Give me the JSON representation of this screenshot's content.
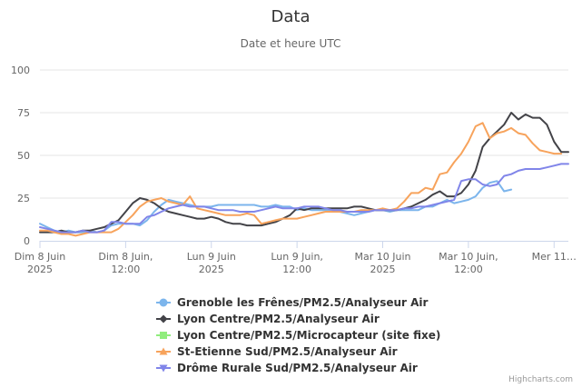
{
  "chart_data": {
    "type": "line",
    "title": "Data",
    "subtitle": "Date et heure UTC",
    "ylim": [
      0,
      100
    ],
    "y_ticks": [
      0,
      25,
      50,
      75,
      100
    ],
    "x_range_hours": [
      0,
      74
    ],
    "x_ticks": [
      {
        "hour": 0,
        "line1": "Dim 8 Juin",
        "line2": "2025"
      },
      {
        "hour": 12,
        "line1": "Dim 8 Juin,",
        "line2": "12:00"
      },
      {
        "hour": 24,
        "line1": "Lun 9 Juin",
        "line2": "2025"
      },
      {
        "hour": 36,
        "line1": "Lun 9 Juin,",
        "line2": "12:00"
      },
      {
        "hour": 48,
        "line1": "Mar 10 Juin",
        "line2": "2025"
      },
      {
        "hour": 60,
        "line1": "Mar 10 Juin,",
        "line2": "12:00"
      },
      {
        "hour": 72,
        "line1": "Mer 11…",
        "line2": ""
      }
    ],
    "series": [
      {
        "name": "Grenoble les Frênes/PM2.5/Analyseur Air",
        "color": "#7cb5ec",
        "marker": "circle",
        "x": [
          0,
          1,
          2,
          3,
          4,
          5,
          6,
          7,
          8,
          9,
          10,
          11,
          12,
          13,
          14,
          15,
          16,
          17,
          18,
          19,
          20,
          21,
          22,
          23,
          24,
          25,
          26,
          27,
          28,
          29,
          30,
          31,
          32,
          33,
          34,
          35,
          36,
          37,
          38,
          39,
          40,
          41,
          42,
          43,
          44,
          45,
          46,
          47,
          48,
          49,
          50,
          51,
          52,
          53,
          54,
          55,
          56,
          57,
          58,
          59,
          60,
          61,
          62,
          63,
          64,
          65,
          66
        ],
        "values": [
          10,
          8,
          6,
          5,
          6,
          5,
          5,
          6,
          5,
          6,
          9,
          10,
          10,
          10,
          9,
          12,
          17,
          21,
          24,
          23,
          22,
          21,
          20,
          20,
          20,
          21,
          21,
          21,
          21,
          21,
          21,
          20,
          20,
          21,
          20,
          20,
          18,
          19,
          18,
          18,
          18,
          17,
          17,
          16,
          15,
          16,
          17,
          18,
          18,
          17,
          18,
          18,
          18,
          18,
          20,
          20,
          22,
          24,
          22,
          23,
          24,
          26,
          31,
          34,
          35,
          29,
          30
        ]
      },
      {
        "name": "Lyon Centre/PM2.5/Analyseur Air",
        "color": "#434348",
        "marker": "diamond",
        "x": [
          0,
          1,
          2,
          3,
          4,
          5,
          6,
          7,
          8,
          9,
          10,
          11,
          12,
          13,
          14,
          15,
          16,
          17,
          18,
          19,
          20,
          21,
          22,
          23,
          24,
          25,
          26,
          27,
          28,
          29,
          30,
          31,
          32,
          33,
          34,
          35,
          36,
          37,
          38,
          39,
          40,
          41,
          42,
          43,
          44,
          45,
          46,
          47,
          48,
          49,
          50,
          51,
          52,
          53,
          54,
          55,
          56,
          57,
          58,
          59,
          60,
          61,
          62,
          63,
          64,
          65,
          66,
          67,
          68,
          69,
          70,
          71,
          72,
          73,
          74
        ],
        "values": [
          5,
          5,
          5,
          6,
          5,
          5,
          6,
          6,
          7,
          8,
          10,
          12,
          17,
          22,
          25,
          24,
          22,
          19,
          17,
          16,
          15,
          14,
          13,
          13,
          14,
          13,
          11,
          10,
          10,
          9,
          9,
          9,
          10,
          11,
          13,
          15,
          19,
          18,
          19,
          19,
          19,
          19,
          19,
          19,
          20,
          20,
          19,
          18,
          18,
          18,
          18,
          19,
          20,
          22,
          24,
          27,
          29,
          26,
          26,
          28,
          33,
          41,
          55,
          60,
          64,
          68,
          75,
          71,
          74,
          72,
          72,
          68,
          58,
          52,
          52
        ]
      },
      {
        "name": "Lyon Centre/PM2.5/Microcapteur (site fixe)",
        "color": "#90ed7d",
        "marker": "square",
        "x": [],
        "values": []
      },
      {
        "name": "St-Etienne Sud/PM2.5/Analyseur Air",
        "color": "#f7a35c",
        "marker": "triangle",
        "x": [
          0,
          1,
          2,
          3,
          4,
          5,
          6,
          7,
          8,
          9,
          10,
          11,
          12,
          13,
          14,
          15,
          16,
          17,
          18,
          19,
          20,
          21,
          22,
          23,
          24,
          25,
          26,
          27,
          28,
          29,
          30,
          31,
          32,
          33,
          34,
          35,
          36,
          37,
          38,
          39,
          40,
          41,
          42,
          43,
          44,
          45,
          46,
          47,
          48,
          49,
          50,
          51,
          52,
          53,
          54,
          55,
          56,
          57,
          58,
          59,
          60,
          61,
          62,
          63,
          64,
          65,
          66,
          67,
          68,
          69,
          70,
          71,
          72,
          73
        ],
        "values": [
          6,
          6,
          5,
          4,
          4,
          3,
          4,
          5,
          5,
          5,
          5,
          7,
          11,
          15,
          20,
          23,
          24,
          25,
          23,
          22,
          21,
          26,
          19,
          18,
          17,
          16,
          15,
          15,
          15,
          16,
          15,
          10,
          11,
          12,
          13,
          13,
          13,
          14,
          15,
          16,
          17,
          17,
          17,
          17,
          17,
          18,
          18,
          18,
          19,
          18,
          19,
          23,
          28,
          28,
          31,
          30,
          39,
          40,
          46,
          51,
          58,
          67,
          69,
          60,
          63,
          64,
          66,
          63,
          62,
          57,
          53,
          52,
          51,
          51
        ]
      },
      {
        "name": "Drôme Rurale Sud/PM2.5/Analyseur Air",
        "color": "#8085e9",
        "marker": "triangle-down",
        "x": [
          0,
          1,
          2,
          3,
          4,
          5,
          6,
          7,
          8,
          9,
          10,
          11,
          12,
          13,
          14,
          15,
          16,
          17,
          18,
          19,
          20,
          21,
          22,
          23,
          24,
          25,
          26,
          27,
          28,
          29,
          30,
          31,
          32,
          33,
          34,
          35,
          36,
          37,
          38,
          39,
          40,
          41,
          42,
          43,
          44,
          45,
          46,
          47,
          48,
          49,
          50,
          51,
          52,
          53,
          54,
          55,
          56,
          57,
          58,
          59,
          60,
          61,
          62,
          63,
          64,
          65,
          66,
          67,
          68,
          69,
          70,
          71,
          72,
          73,
          74
        ],
        "values": [
          8,
          7,
          6,
          5,
          5,
          5,
          6,
          5,
          5,
          6,
          11,
          11,
          10,
          10,
          10,
          14,
          15,
          17,
          19,
          20,
          21,
          20,
          20,
          20,
          19,
          18,
          18,
          18,
          17,
          17,
          17,
          18,
          19,
          20,
          19,
          19,
          19,
          20,
          20,
          20,
          19,
          18,
          18,
          17,
          17,
          17,
          17,
          18,
          18,
          18,
          18,
          19,
          19,
          20,
          20,
          21,
          22,
          23,
          24,
          35,
          36,
          36,
          33,
          32,
          33,
          38,
          39,
          41,
          42,
          42,
          42,
          43,
          44,
          45,
          45
        ]
      }
    ],
    "legend_position": "bottom-center",
    "credits": "Highcharts.com"
  }
}
